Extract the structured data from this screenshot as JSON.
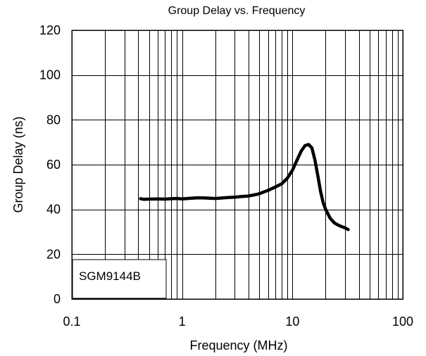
{
  "chart_data": {
    "type": "line",
    "title": "Group Delay vs. Frequency",
    "xlabel": "Frequency (MHz)",
    "ylabel": "Group Delay (ns)",
    "x_scale": "log",
    "xlim": [
      0.1,
      100
    ],
    "ylim": [
      0,
      120
    ],
    "grid": true,
    "x_ticks": [
      "0.1",
      "1",
      "10",
      "100"
    ],
    "y_ticks": [
      "0",
      "20",
      "40",
      "60",
      "80",
      "100",
      "120"
    ],
    "annotation": "SGM9144B",
    "series": [
      {
        "x": [
          0.42,
          0.45,
          0.5,
          0.6,
          0.7,
          0.8,
          0.9,
          1.0,
          1.2,
          1.4,
          1.6,
          1.8,
          2.0,
          2.3,
          2.6,
          3.0,
          3.5,
          4.0,
          4.5,
          5.0,
          5.5,
          6.0,
          7.0,
          8.0,
          9.0,
          10.0,
          11.0,
          12.0,
          13.0,
          14.0,
          15.0,
          16.0,
          17.0,
          18.0,
          19.0,
          20.0,
          22.0,
          24.0,
          26.0,
          28.0,
          30.0,
          32.0
        ],
        "y": [
          44.8,
          44.5,
          44.6,
          44.7,
          44.6,
          44.8,
          44.9,
          44.7,
          45.0,
          45.2,
          45.1,
          45.0,
          44.9,
          45.1,
          45.3,
          45.5,
          45.8,
          46.0,
          46.5,
          47.0,
          47.8,
          48.5,
          50.0,
          51.5,
          54.0,
          57.5,
          62.0,
          66.0,
          68.5,
          69.0,
          67.5,
          62.0,
          55.0,
          48.0,
          43.0,
          40.0,
          36.0,
          34.0,
          33.0,
          32.3,
          31.8,
          31.0
        ]
      }
    ]
  }
}
